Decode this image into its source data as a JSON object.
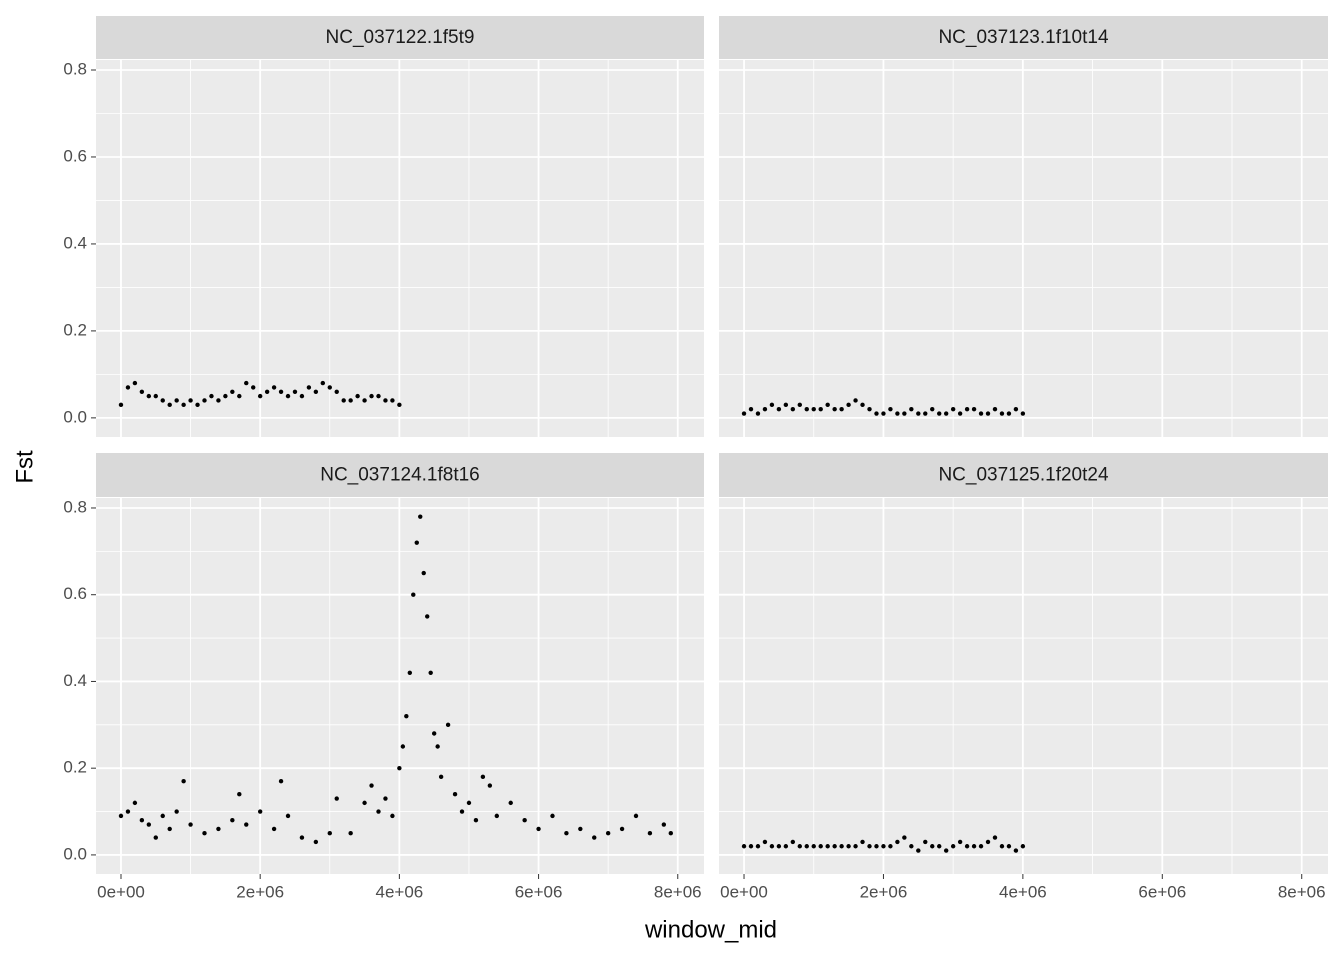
{
  "chart_data": {
    "type": "scatter",
    "xlabel": "window_mid",
    "ylabel": "Fst",
    "color": "#000000",
    "grid": true,
    "minor_grid": true,
    "xlim": [
      -359000,
      8377000
    ],
    "ylim": [
      -0.044,
      0.823
    ],
    "xticks": [
      {
        "value": 0,
        "label": "0e+00"
      },
      {
        "value": 2000000,
        "label": "2e+06"
      },
      {
        "value": 4000000,
        "label": "4e+06"
      },
      {
        "value": 6000000,
        "label": "6e+06"
      },
      {
        "value": 8000000,
        "label": "8e+06"
      }
    ],
    "yticks": [
      {
        "value": 0,
        "label": "0.0"
      },
      0.2,
      0.4,
      0.6,
      0.8
    ],
    "facets": [
      {
        "title": "NC_037122.1f5t9",
        "x": [
          0,
          100000,
          200000,
          300000,
          400000,
          500000,
          600000,
          700000,
          800000,
          900000,
          1000000,
          1100000,
          1200000,
          1300000,
          1400000,
          1500000,
          1600000,
          1700000,
          1800000,
          1900000,
          2000000,
          2100000,
          2200000,
          2300000,
          2400000,
          2500000,
          2600000,
          2700000,
          2800000,
          2900000,
          3000000,
          3100000,
          3200000,
          3300000,
          3400000,
          3500000,
          3600000,
          3700000,
          3800000,
          3900000,
          4000000
        ],
        "values": [
          0.03,
          0.07,
          0.08,
          0.06,
          0.05,
          0.05,
          0.04,
          0.03,
          0.04,
          0.03,
          0.04,
          0.03,
          0.04,
          0.05,
          0.04,
          0.05,
          0.06,
          0.05,
          0.08,
          0.07,
          0.05,
          0.06,
          0.07,
          0.06,
          0.05,
          0.06,
          0.05,
          0.07,
          0.06,
          0.08,
          0.07,
          0.06,
          0.04,
          0.04,
          0.05,
          0.04,
          0.05,
          0.05,
          0.04,
          0.04,
          0.03
        ]
      },
      {
        "title": "NC_037123.1f10t14",
        "x": [
          0,
          100000,
          200000,
          300000,
          400000,
          500000,
          600000,
          700000,
          800000,
          900000,
          1000000,
          1100000,
          1200000,
          1300000,
          1400000,
          1500000,
          1600000,
          1700000,
          1800000,
          1900000,
          2000000,
          2100000,
          2200000,
          2300000,
          2400000,
          2500000,
          2600000,
          2700000,
          2800000,
          2900000,
          3000000,
          3100000,
          3200000,
          3300000,
          3400000,
          3500000,
          3600000,
          3700000,
          3800000,
          3900000,
          4000000
        ],
        "values": [
          0.01,
          0.02,
          0.01,
          0.02,
          0.03,
          0.02,
          0.03,
          0.02,
          0.03,
          0.02,
          0.02,
          0.02,
          0.03,
          0.02,
          0.02,
          0.03,
          0.04,
          0.03,
          0.02,
          0.01,
          0.01,
          0.02,
          0.01,
          0.01,
          0.02,
          0.01,
          0.01,
          0.02,
          0.01,
          0.01,
          0.02,
          0.01,
          0.02,
          0.02,
          0.01,
          0.01,
          0.02,
          0.01,
          0.01,
          0.02,
          0.01
        ]
      },
      {
        "title": "NC_037124.1f8t16",
        "x": [
          0,
          100000,
          200000,
          300000,
          400000,
          500000,
          600000,
          700000,
          800000,
          900000,
          1000000,
          1200000,
          1400000,
          1600000,
          1700000,
          1800000,
          2000000,
          2200000,
          2300000,
          2400000,
          2600000,
          2800000,
          3000000,
          3100000,
          3300000,
          3500000,
          3600000,
          3700000,
          3800000,
          3900000,
          4000000,
          4050000,
          4100000,
          4150000,
          4200000,
          4250000,
          4300000,
          4350000,
          4400000,
          4450000,
          4500000,
          4550000,
          4600000,
          4700000,
          4800000,
          4900000,
          5000000,
          5100000,
          5200000,
          5300000,
          5400000,
          5600000,
          5800000,
          6000000,
          6200000,
          6400000,
          6600000,
          6800000,
          7000000,
          7200000,
          7400000,
          7600000,
          7800000,
          7900000
        ],
        "values": [
          0.09,
          0.1,
          0.12,
          0.08,
          0.07,
          0.04,
          0.09,
          0.06,
          0.1,
          0.17,
          0.07,
          0.05,
          0.06,
          0.08,
          0.14,
          0.07,
          0.1,
          0.06,
          0.17,
          0.09,
          0.04,
          0.03,
          0.05,
          0.13,
          0.05,
          0.12,
          0.16,
          0.1,
          0.13,
          0.09,
          0.2,
          0.25,
          0.32,
          0.42,
          0.6,
          0.72,
          0.78,
          0.65,
          0.55,
          0.42,
          0.28,
          0.25,
          0.18,
          0.3,
          0.14,
          0.1,
          0.12,
          0.08,
          0.18,
          0.16,
          0.09,
          0.12,
          0.08,
          0.06,
          0.09,
          0.05,
          0.06,
          0.04,
          0.05,
          0.06,
          0.09,
          0.05,
          0.07,
          0.05
        ]
      },
      {
        "title": "NC_037125.1f20t24",
        "x": [
          0,
          100000,
          200000,
          300000,
          400000,
          500000,
          600000,
          700000,
          800000,
          900000,
          1000000,
          1100000,
          1200000,
          1300000,
          1400000,
          1500000,
          1600000,
          1700000,
          1800000,
          1900000,
          2000000,
          2100000,
          2200000,
          2300000,
          2400000,
          2500000,
          2600000,
          2700000,
          2800000,
          2900000,
          3000000,
          3100000,
          3200000,
          3300000,
          3400000,
          3500000,
          3600000,
          3700000,
          3800000,
          3900000,
          4000000
        ],
        "values": [
          0.02,
          0.02,
          0.02,
          0.03,
          0.02,
          0.02,
          0.02,
          0.03,
          0.02,
          0.02,
          0.02,
          0.02,
          0.02,
          0.02,
          0.02,
          0.02,
          0.02,
          0.03,
          0.02,
          0.02,
          0.02,
          0.02,
          0.03,
          0.04,
          0.02,
          0.01,
          0.03,
          0.02,
          0.02,
          0.01,
          0.02,
          0.03,
          0.02,
          0.02,
          0.02,
          0.03,
          0.04,
          0.02,
          0.02,
          0.01,
          0.02
        ]
      }
    ]
  }
}
